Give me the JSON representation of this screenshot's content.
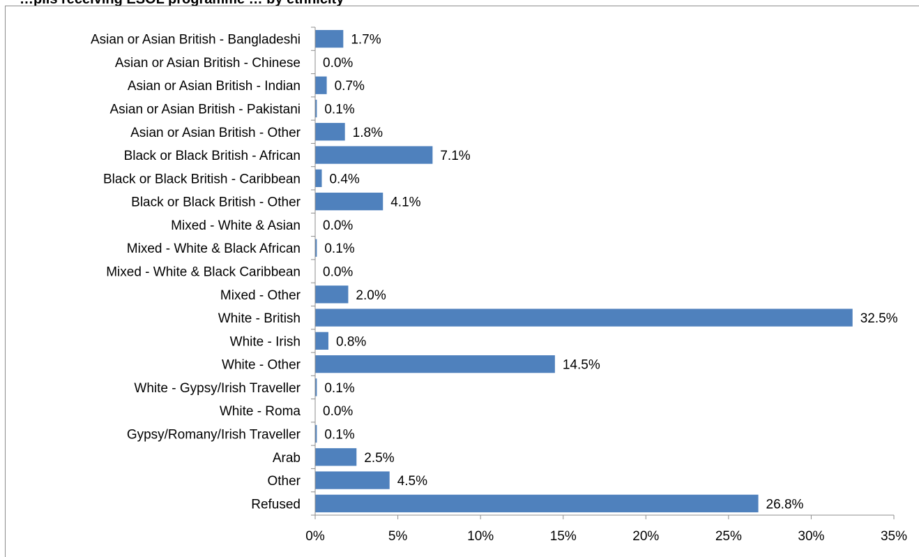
{
  "chart_data": {
    "type": "bar",
    "orientation": "horizontal",
    "title": "…pils receiving ESOL programme … by ethnicity",
    "categories": [
      "Asian or Asian British - Bangladeshi",
      "Asian or Asian British - Chinese",
      "Asian or Asian British - Indian",
      "Asian or Asian British - Pakistani",
      "Asian or Asian British - Other",
      "Black or Black British - African",
      "Black or Black British - Caribbean",
      "Black or Black British - Other",
      "Mixed - White & Asian",
      "Mixed - White & Black African",
      "Mixed - White & Black Caribbean",
      "Mixed - Other",
      "White - British",
      "White - Irish",
      "White - Other",
      "White - Gypsy/Irish Traveller",
      "White - Roma",
      "Gypsy/Romany/Irish Traveller",
      "Arab",
      "Other",
      "Refused"
    ],
    "values": [
      1.7,
      0.0,
      0.7,
      0.1,
      1.8,
      7.1,
      0.4,
      4.1,
      0.0,
      0.1,
      0.0,
      2.0,
      32.5,
      0.8,
      14.5,
      0.1,
      0.0,
      0.1,
      2.5,
      4.5,
      26.8
    ],
    "data_labels": [
      "1.7%",
      "0.0%",
      "0.7%",
      "0.1%",
      "1.8%",
      "7.1%",
      "0.4%",
      "4.1%",
      "0.0%",
      "0.1%",
      "0.0%",
      "2.0%",
      "32.5%",
      "0.8%",
      "14.5%",
      "0.1%",
      "0.0%",
      "0.1%",
      "2.5%",
      "4.5%",
      "26.8%"
    ],
    "xlim": [
      0,
      35
    ],
    "xticks": [
      0,
      5,
      10,
      15,
      20,
      25,
      30,
      35
    ],
    "xtick_labels": [
      "0%",
      "5%",
      "10%",
      "15%",
      "20%",
      "25%",
      "30%",
      "35%"
    ],
    "xlabel": "",
    "ylabel": "",
    "grid": false,
    "legend": "none",
    "bar_color": "#4f81bd"
  }
}
